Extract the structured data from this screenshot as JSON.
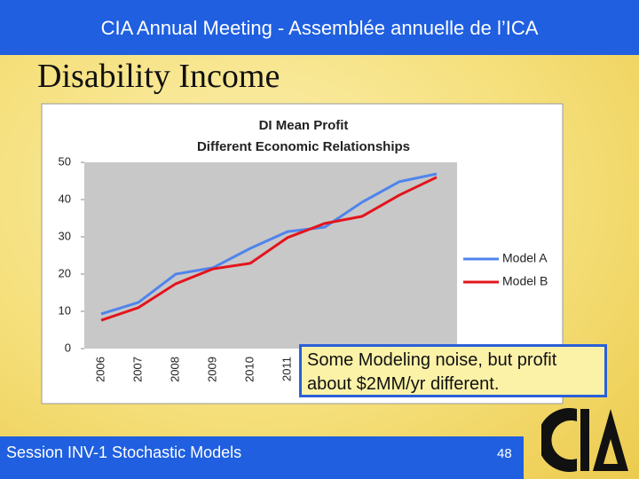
{
  "header": {
    "title": "CIA Annual Meeting - Assemblée annuelle de l’ICA"
  },
  "slide_title": "Disability Income",
  "chart_data": {
    "type": "line",
    "title": "DI Mean Profit",
    "subtitle": "Different Economic Relationships",
    "categories": [
      "2006",
      "2007",
      "2008",
      "2009",
      "2010",
      "2011",
      null,
      null,
      null,
      null
    ],
    "series": [
      {
        "name": "Model A",
        "color": "#4f84ec",
        "values": [
          9.3,
          12.4,
          20,
          21.7,
          26.9,
          31.4,
          32.6,
          39.3,
          44.8,
          46.9
        ]
      },
      {
        "name": "Model B",
        "color": "#e3141b",
        "values": [
          7.6,
          11,
          17.4,
          21.4,
          22.9,
          29.8,
          33.6,
          35.5,
          41.2,
          46
        ]
      }
    ],
    "ylim": [
      0,
      50
    ],
    "yticks": [
      0,
      10,
      20,
      30,
      40,
      50
    ],
    "legend": "right"
  },
  "callout": "Some Modeling noise, but profit about $2MM/yr different.",
  "footer": {
    "session": "Session INV-1 Stochastic Models",
    "page": "48"
  }
}
